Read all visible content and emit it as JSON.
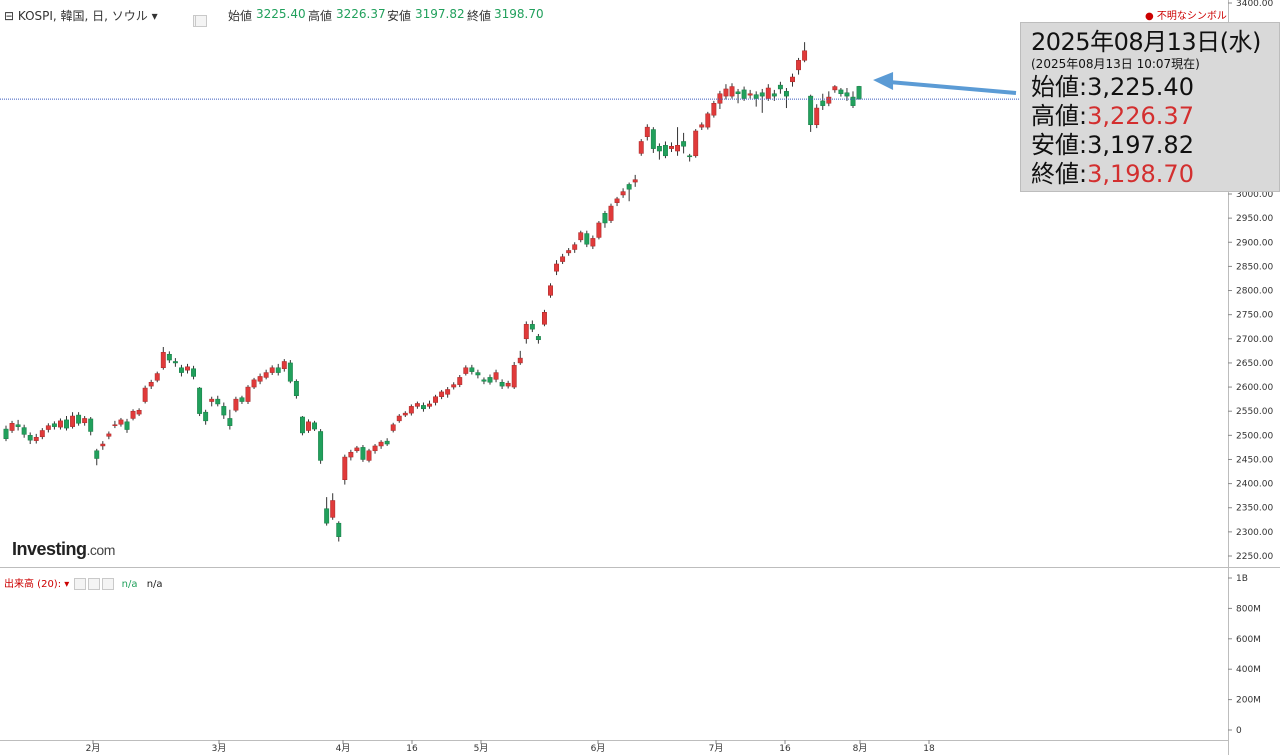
{
  "header": {
    "symbol_label": "⊟ KOSPI, 韓国, 日, ソウル ▾",
    "open_label": "始値",
    "open_value": "3225.40",
    "high_label": "高値",
    "high_value": "3226.37",
    "low_label": "安値",
    "low_value": "3197.82",
    "close_label": "終値",
    "close_value": "3198.70",
    "unknown_symbol": "● 不明なシンボル",
    "value_color": "#21a05c"
  },
  "info_box": {
    "date": "2025年08月13日(水)",
    "timestamp": "(2025年08月13日 10:07現在)",
    "rows": [
      {
        "label": "始値:",
        "value": "3,225.40",
        "color": "#111111"
      },
      {
        "label": "高値:",
        "value": "3,226.37",
        "color": "#d32f2f"
      },
      {
        "label": "安値:",
        "value": "3,197.82",
        "color": "#111111"
      },
      {
        "label": "終値:",
        "value": "3,198.70",
        "color": "#d32f2f"
      }
    ],
    "arrow_color": "#5b9bd5"
  },
  "logo": {
    "main": "Investing",
    "suffix": ".com"
  },
  "volume": {
    "label": "出来高 (20): ▾",
    "value1": "n/a",
    "value2": "n/a",
    "ticks": [
      "1B",
      "800M",
      "600M",
      "400M",
      "200M",
      "0"
    ],
    "tick_values": [
      1000,
      800,
      600,
      400,
      200,
      0
    ]
  },
  "colors": {
    "up": "#e03a3a",
    "down": "#21a05c",
    "wick": "#333333",
    "grid": "#e6e6e6",
    "current_line": "#3a5bbd"
  },
  "chart_data": {
    "type": "candlestick",
    "ylim": [
      2225,
      3400
    ],
    "y_ticks": [
      3400,
      3000,
      2950,
      2900,
      2850,
      2800,
      2750,
      2700,
      2650,
      2600,
      2550,
      2500,
      2450,
      2400,
      2350,
      2300,
      2250
    ],
    "y_tick_labels": [
      "3400.00",
      "3000.00",
      "2950.00",
      "2900.00",
      "2850.00",
      "2800.00",
      "2750.00",
      "2700.00",
      "2650.00",
      "2600.00",
      "2550.00",
      "2500.00",
      "2450.00",
      "2400.00",
      "2350.00",
      "2300.00",
      "2250.00"
    ],
    "x_ticks": [
      "2月",
      "3月",
      "4月",
      "16",
      "5月",
      "6月",
      "7月",
      "16",
      "8月",
      "18"
    ],
    "current_value": 3198.7,
    "candles": [
      [
        2513,
        2493,
        2520,
        2488
      ],
      [
        2510,
        2525,
        2530,
        2505
      ],
      [
        2522,
        2518,
        2532,
        2510
      ],
      [
        2516,
        2502,
        2522,
        2495
      ],
      [
        2500,
        2490,
        2506,
        2482
      ],
      [
        2489,
        2496,
        2503,
        2483
      ],
      [
        2497,
        2510,
        2515,
        2492
      ],
      [
        2512,
        2520,
        2525,
        2506
      ],
      [
        2524,
        2518,
        2529,
        2512
      ],
      [
        2517,
        2530,
        2535,
        2512
      ],
      [
        2532,
        2515,
        2540,
        2510
      ],
      [
        2518,
        2540,
        2548,
        2514
      ],
      [
        2542,
        2525,
        2548,
        2520
      ],
      [
        2526,
        2535,
        2540,
        2520
      ],
      [
        2534,
        2508,
        2538,
        2500
      ],
      [
        2468,
        2452,
        2472,
        2438
      ],
      [
        2478,
        2482,
        2488,
        2470
      ],
      [
        2498,
        2503,
        2508,
        2492
      ],
      [
        2520,
        2522,
        2530,
        2515
      ],
      [
        2523,
        2532,
        2536,
        2518
      ],
      [
        2528,
        2512,
        2534,
        2505
      ],
      [
        2535,
        2550,
        2554,
        2531
      ],
      [
        2544,
        2552,
        2556,
        2540
      ],
      [
        2570,
        2598,
        2603,
        2566
      ],
      [
        2602,
        2610,
        2615,
        2596
      ],
      [
        2614,
        2628,
        2632,
        2610
      ],
      [
        2640,
        2672,
        2683,
        2636
      ],
      [
        2668,
        2656,
        2674,
        2650
      ],
      [
        2653,
        2650,
        2660,
        2642
      ],
      [
        2640,
        2630,
        2646,
        2622
      ],
      [
        2635,
        2642,
        2648,
        2628
      ],
      [
        2638,
        2622,
        2644,
        2616
      ],
      [
        2598,
        2545,
        2600,
        2540
      ],
      [
        2548,
        2530,
        2553,
        2522
      ],
      [
        2570,
        2575,
        2580,
        2560
      ],
      [
        2575,
        2565,
        2582,
        2560
      ],
      [
        2560,
        2542,
        2568,
        2534
      ],
      [
        2535,
        2520,
        2553,
        2512
      ],
      [
        2552,
        2575,
        2580,
        2548
      ],
      [
        2578,
        2570,
        2582,
        2565
      ],
      [
        2570,
        2600,
        2604,
        2565
      ],
      [
        2600,
        2615,
        2619,
        2596
      ],
      [
        2612,
        2622,
        2628,
        2606
      ],
      [
        2620,
        2630,
        2636,
        2616
      ],
      [
        2630,
        2640,
        2645,
        2625
      ],
      [
        2640,
        2630,
        2648,
        2624
      ],
      [
        2638,
        2653,
        2658,
        2632
      ],
      [
        2650,
        2612,
        2656,
        2608
      ],
      [
        2612,
        2582,
        2616,
        2576
      ],
      [
        2538,
        2505,
        2540,
        2500
      ],
      [
        2510,
        2528,
        2533,
        2505
      ],
      [
        2526,
        2513,
        2530,
        2509
      ],
      [
        2508,
        2448,
        2513,
        2441
      ],
      [
        2348,
        2318,
        2372,
        2313
      ],
      [
        2330,
        2365,
        2380,
        2325
      ],
      [
        2318,
        2290,
        2322,
        2280
      ],
      [
        2408,
        2455,
        2460,
        2398
      ],
      [
        2455,
        2465,
        2470,
        2448
      ],
      [
        2468,
        2474,
        2478,
        2464
      ],
      [
        2475,
        2450,
        2480,
        2445
      ],
      [
        2448,
        2468,
        2472,
        2444
      ],
      [
        2468,
        2478,
        2482,
        2462
      ],
      [
        2478,
        2486,
        2490,
        2472
      ],
      [
        2488,
        2482,
        2494,
        2478
      ],
      [
        2510,
        2522,
        2526,
        2506
      ],
      [
        2530,
        2540,
        2544,
        2526
      ],
      [
        2542,
        2546,
        2550,
        2538
      ],
      [
        2546,
        2560,
        2564,
        2541
      ],
      [
        2560,
        2566,
        2570,
        2555
      ],
      [
        2562,
        2555,
        2568,
        2549
      ],
      [
        2560,
        2565,
        2572,
        2555
      ],
      [
        2568,
        2580,
        2584,
        2562
      ],
      [
        2580,
        2590,
        2594,
        2575
      ],
      [
        2585,
        2595,
        2600,
        2578
      ],
      [
        2600,
        2605,
        2610,
        2595
      ],
      [
        2605,
        2620,
        2625,
        2600
      ],
      [
        2628,
        2640,
        2645,
        2624
      ],
      [
        2640,
        2632,
        2646,
        2626
      ],
      [
        2630,
        2625,
        2636,
        2618
      ],
      [
        2615,
        2612,
        2620,
        2606
      ],
      [
        2620,
        2610,
        2626,
        2605
      ],
      [
        2616,
        2630,
        2636,
        2610
      ],
      [
        2610,
        2602,
        2616,
        2596
      ],
      [
        2602,
        2608,
        2613,
        2597
      ],
      [
        2600,
        2645,
        2652,
        2596
      ],
      [
        2650,
        2660,
        2675,
        2646
      ],
      [
        2700,
        2730,
        2736,
        2690
      ],
      [
        2730,
        2720,
        2738,
        2714
      ],
      [
        2705,
        2698,
        2710,
        2690
      ],
      [
        2730,
        2755,
        2760,
        2726
      ],
      [
        2790,
        2810,
        2815,
        2785
      ],
      [
        2840,
        2855,
        2863,
        2832
      ],
      [
        2860,
        2870,
        2876,
        2855
      ],
      [
        2878,
        2883,
        2888,
        2872
      ],
      [
        2885,
        2895,
        2900,
        2878
      ],
      [
        2905,
        2920,
        2924,
        2900
      ],
      [
        2918,
        2896,
        2924,
        2890
      ],
      [
        2892,
        2908,
        2914,
        2886
      ],
      [
        2910,
        2940,
        2944,
        2906
      ],
      [
        2960,
        2940,
        2965,
        2930
      ],
      [
        2945,
        2975,
        2980,
        2940
      ],
      [
        2982,
        2990,
        2994,
        2975
      ],
      [
        2998,
        3005,
        3012,
        2992
      ],
      [
        3020,
        3010,
        3024,
        2985
      ],
      [
        3025,
        3030,
        3040,
        3015
      ],
      [
        3085,
        3110,
        3115,
        3080
      ],
      [
        3120,
        3140,
        3146,
        3112
      ],
      [
        3135,
        3095,
        3140,
        3086
      ],
      [
        3100,
        3090,
        3106,
        3072
      ],
      [
        3102,
        3080,
        3110,
        3075
      ],
      [
        3095,
        3100,
        3108,
        3088
      ],
      [
        3090,
        3102,
        3140,
        3080
      ],
      [
        3110,
        3100,
        3128,
        3085
      ],
      [
        3080,
        3078,
        3084,
        3068
      ],
      [
        3080,
        3132,
        3136,
        3076
      ],
      [
        3140,
        3145,
        3150,
        3134
      ],
      [
        3140,
        3168,
        3172,
        3135
      ],
      [
        3165,
        3190,
        3195,
        3160
      ],
      [
        3190,
        3210,
        3216,
        3178
      ],
      [
        3205,
        3220,
        3230,
        3198
      ],
      [
        3205,
        3225,
        3232,
        3200
      ],
      [
        3214,
        3210,
        3220,
        3190
      ],
      [
        3218,
        3200,
        3225,
        3195
      ],
      [
        3207,
        3210,
        3218,
        3200
      ],
      [
        3208,
        3200,
        3215,
        3183
      ],
      [
        3212,
        3205,
        3220,
        3170
      ],
      [
        3200,
        3222,
        3230,
        3195
      ],
      [
        3210,
        3205,
        3218,
        3195
      ],
      [
        3228,
        3220,
        3235,
        3210
      ],
      [
        3215,
        3205,
        3222,
        3180
      ],
      [
        3235,
        3245,
        3252,
        3225
      ],
      [
        3260,
        3280,
        3285,
        3250
      ],
      [
        3280,
        3300,
        3318,
        3276
      ],
      [
        3205,
        3145,
        3208,
        3130
      ],
      [
        3145,
        3180,
        3188,
        3138
      ],
      [
        3195,
        3185,
        3210,
        3176
      ],
      [
        3190,
        3203,
        3215,
        3184
      ],
      [
        3218,
        3225,
        3228,
        3212
      ],
      [
        3218,
        3210,
        3222,
        3204
      ],
      [
        3212,
        3205,
        3222,
        3195
      ],
      [
        3203,
        3185,
        3215,
        3180
      ],
      [
        3225.4,
        3198.7,
        3226.37,
        3197.82
      ]
    ]
  }
}
